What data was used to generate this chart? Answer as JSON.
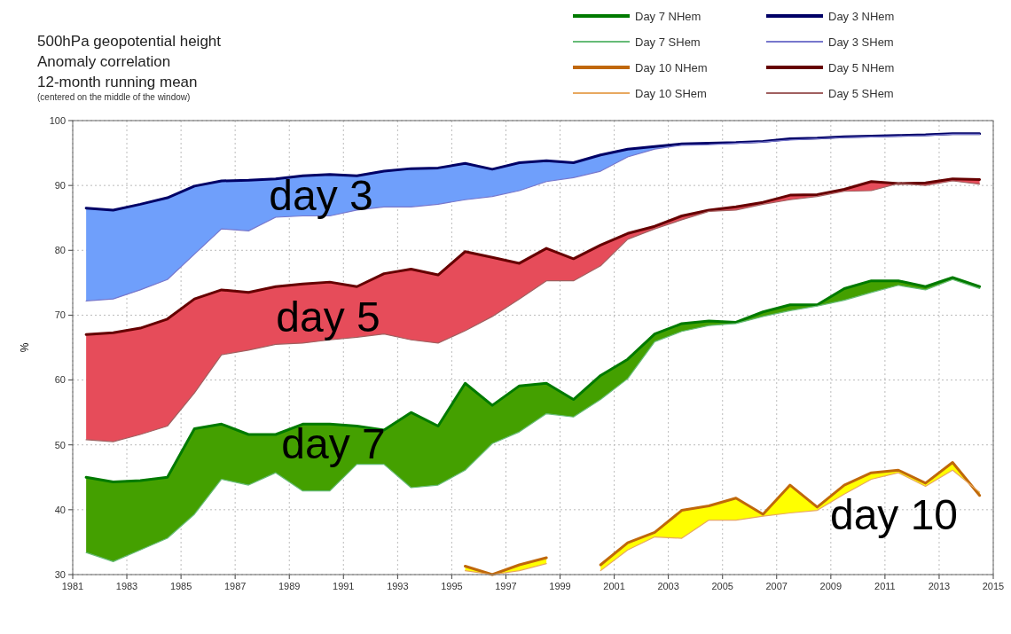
{
  "chart_data": {
    "type": "line",
    "title": "500hPa geopotential height\nAnomaly correlation\n12-month running mean",
    "subtitle": "(centered on the middle of the window)",
    "ylabel": "%",
    "x": [
      "1981-07",
      "1982-07",
      "1983-07",
      "1984-07",
      "1985-07",
      "1986-07",
      "1987-07",
      "1988-07",
      "1989-07",
      "1990-07",
      "1991-07",
      "1992-07",
      "1993-07",
      "1994-07",
      "1995-07",
      "1996-07",
      "1997-07",
      "1998-07",
      "1999-07",
      "2000-07",
      "2001-07",
      "2002-07",
      "2003-07",
      "2004-07",
      "2005-07",
      "2006-07",
      "2007-07",
      "2008-07",
      "2009-07",
      "2010-07",
      "2011-07",
      "2012-07",
      "2013-07",
      "2014-07"
    ],
    "xlim": [
      "1981",
      "2015"
    ],
    "xticks": [
      "1981",
      "1983",
      "1985",
      "1987",
      "1989",
      "1991",
      "1993",
      "1995",
      "1997",
      "1999",
      "2001",
      "2003",
      "2005",
      "2007",
      "2009",
      "2011",
      "2013",
      "2015"
    ],
    "ylim": [
      30,
      100
    ],
    "yticks": [
      30,
      40,
      50,
      60,
      70,
      80,
      90,
      100
    ],
    "grid": true,
    "legend": "top right",
    "series": [
      {
        "type": "area",
        "color": "#44a000",
        "values": [
          null,
          null,
          null,
          null,
          null,
          null,
          null,
          null,
          null,
          null,
          null,
          null,
          null,
          null,
          null,
          null,
          null,
          null,
          null,
          null,
          null,
          null,
          null,
          null,
          null,
          null,
          null,
          null,
          null,
          null,
          null,
          null,
          null,
          null
        ],
        "upper": [
          45.0,
          44.3,
          44.5,
          45.0,
          52.5,
          53.2,
          51.6,
          51.6,
          53.2,
          53.2,
          52.9,
          52.3,
          55.0,
          52.9,
          59.5,
          56.1,
          59.1,
          59.5,
          57.0,
          60.7,
          63.2,
          67.1,
          68.7,
          69.1,
          68.9,
          70.5,
          71.6,
          71.6,
          74.1,
          75.3,
          75.3,
          74.4,
          75.8,
          74.4
        ],
        "lower": [
          33.4,
          32.0,
          33.8,
          35.6,
          39.3,
          44.7,
          43.8,
          45.7,
          42.9,
          42.9,
          47.0,
          47.0,
          43.4,
          43.8,
          46.1,
          50.2,
          52.0,
          54.8,
          54.3,
          57.0,
          60.2,
          65.9,
          67.5,
          68.4,
          68.7,
          69.8,
          70.7,
          71.4,
          72.3,
          73.5,
          74.6,
          73.9,
          75.5,
          74.1
        ]
      },
      {
        "name": "Day 7 NHem",
        "color": "#007a00",
        "values": [
          45.0,
          44.3,
          44.5,
          45.0,
          52.5,
          53.2,
          51.6,
          51.6,
          53.2,
          53.2,
          52.9,
          52.3,
          55.0,
          52.9,
          59.5,
          56.1,
          59.1,
          59.5,
          57.0,
          60.7,
          63.2,
          67.1,
          68.7,
          69.1,
          68.9,
          70.5,
          71.6,
          71.6,
          74.1,
          75.3,
          75.3,
          74.4,
          75.8,
          74.4
        ]
      },
      {
        "name": "Day 7 SHem",
        "color": "#66bb77",
        "values": [
          33.4,
          32.0,
          33.8,
          35.6,
          39.3,
          44.7,
          43.8,
          45.7,
          42.9,
          42.9,
          47.0,
          47.0,
          43.4,
          43.8,
          46.1,
          50.2,
          52.0,
          54.8,
          54.3,
          57.0,
          60.2,
          65.9,
          67.5,
          68.4,
          68.7,
          69.8,
          70.7,
          71.4,
          72.3,
          73.5,
          74.6,
          73.9,
          75.5,
          74.1
        ]
      },
      {
        "type": "area",
        "color": "#ffff00",
        "values": [
          null,
          null,
          null,
          null,
          null,
          null,
          null,
          null,
          null,
          null,
          null,
          null,
          null,
          null,
          null,
          null,
          null,
          null,
          null,
          null,
          null,
          null,
          null,
          null,
          null,
          null,
          null,
          null,
          null,
          null,
          null,
          null,
          null,
          null
        ],
        "upper": [
          null,
          null,
          null,
          null,
          null,
          null,
          null,
          null,
          null,
          null,
          null,
          null,
          null,
          null,
          31.3,
          30.0,
          31.5,
          32.6,
          null,
          31.5,
          34.9,
          36.5,
          39.9,
          40.6,
          41.8,
          39.3,
          43.8,
          40.4,
          43.8,
          45.7,
          46.1,
          44.1,
          47.3,
          42.2
        ],
        "lower": [
          null,
          null,
          null,
          null,
          null,
          null,
          null,
          null,
          null,
          null,
          null,
          null,
          null,
          null,
          30.6,
          30.0,
          30.6,
          31.7,
          null,
          30.6,
          33.8,
          35.8,
          35.6,
          38.4,
          38.4,
          39.0,
          39.5,
          39.9,
          42.4,
          44.7,
          45.7,
          43.6,
          46.1,
          42.7
        ]
      },
      {
        "name": "Day 10 NHem",
        "color": "#c0680a",
        "values": [
          null,
          null,
          null,
          null,
          null,
          null,
          null,
          null,
          null,
          null,
          null,
          null,
          null,
          null,
          31.3,
          30.0,
          31.5,
          32.6,
          null,
          31.5,
          34.9,
          36.5,
          39.9,
          40.6,
          41.8,
          39.3,
          43.8,
          40.4,
          43.8,
          45.7,
          46.1,
          44.1,
          47.3,
          42.2
        ]
      },
      {
        "name": "Day 10 SHem",
        "color": "#e8a860",
        "values": [
          null,
          null,
          null,
          null,
          null,
          null,
          null,
          null,
          null,
          null,
          null,
          null,
          null,
          null,
          30.6,
          30.0,
          30.6,
          31.7,
          null,
          30.6,
          33.8,
          35.8,
          35.6,
          38.4,
          38.4,
          39.0,
          39.5,
          39.9,
          42.4,
          44.7,
          45.7,
          43.6,
          46.1,
          42.7
        ]
      },
      {
        "type": "area",
        "color": "#6f9ffb",
        "values": [
          null,
          null,
          null,
          null,
          null,
          null,
          null,
          null,
          null,
          null,
          null,
          null,
          null,
          null,
          null,
          null,
          null,
          null,
          null,
          null,
          null,
          null,
          null,
          null,
          null,
          null,
          null,
          null,
          null,
          null,
          null,
          null,
          null,
          null
        ],
        "upper": [
          86.5,
          86.2,
          87.1,
          88.1,
          89.9,
          90.7,
          90.8,
          91.0,
          91.5,
          91.7,
          91.5,
          92.2,
          92.6,
          92.7,
          93.4,
          92.5,
          93.5,
          93.8,
          93.5,
          94.7,
          95.6,
          96.0,
          96.4,
          96.5,
          96.6,
          96.8,
          97.2,
          97.3,
          97.5,
          97.6,
          97.7,
          97.8,
          98.0,
          98.0
        ],
        "lower": [
          72.2,
          72.5,
          73.9,
          75.5,
          79.4,
          83.3,
          83.0,
          85.1,
          85.3,
          85.3,
          86.2,
          86.7,
          86.7,
          87.1,
          87.8,
          88.3,
          89.2,
          90.6,
          91.2,
          92.2,
          94.4,
          95.6,
          96.2,
          96.3,
          96.5,
          96.7,
          97.0,
          97.2,
          97.4,
          97.5,
          97.6,
          97.7,
          97.9,
          97.9
        ]
      },
      {
        "name": "Day 3 NHem",
        "color": "#000066",
        "values": [
          86.5,
          86.2,
          87.1,
          88.1,
          89.9,
          90.7,
          90.8,
          91.0,
          91.5,
          91.7,
          91.5,
          92.2,
          92.6,
          92.7,
          93.4,
          92.5,
          93.5,
          93.8,
          93.5,
          94.7,
          95.6,
          96.0,
          96.4,
          96.5,
          96.6,
          96.8,
          97.2,
          97.3,
          97.5,
          97.6,
          97.7,
          97.8,
          98.0,
          98.0
        ]
      },
      {
        "name": "Day 3 SHem",
        "color": "#7777cc",
        "values": [
          72.2,
          72.5,
          73.9,
          75.5,
          79.4,
          83.3,
          83.0,
          85.1,
          85.3,
          85.3,
          86.2,
          86.7,
          86.7,
          87.1,
          87.8,
          88.3,
          89.2,
          90.6,
          91.2,
          92.2,
          94.4,
          95.6,
          96.2,
          96.3,
          96.5,
          96.7,
          97.0,
          97.2,
          97.4,
          97.5,
          97.6,
          97.7,
          97.9,
          97.9
        ]
      },
      {
        "type": "area",
        "color": "#e64c5a",
        "values": [
          null,
          null,
          null,
          null,
          null,
          null,
          null,
          null,
          null,
          null,
          null,
          null,
          null,
          null,
          null,
          null,
          null,
          null,
          null,
          null,
          null,
          null,
          null,
          null,
          null,
          null,
          null,
          null,
          null,
          null,
          null,
          null,
          null,
          null
        ],
        "upper": [
          67.0,
          67.3,
          68.0,
          69.4,
          72.5,
          73.9,
          73.5,
          74.4,
          74.8,
          75.1,
          74.4,
          76.4,
          77.1,
          76.2,
          79.8,
          78.9,
          78.0,
          80.3,
          78.7,
          80.8,
          82.6,
          83.7,
          85.3,
          86.2,
          86.7,
          87.4,
          88.5,
          88.6,
          89.4,
          90.6,
          90.3,
          90.4,
          91.0,
          90.9
        ],
        "lower": [
          50.8,
          50.5,
          51.6,
          52.9,
          58.0,
          63.9,
          64.6,
          65.5,
          65.7,
          66.2,
          66.6,
          67.1,
          66.2,
          65.7,
          67.6,
          69.8,
          72.5,
          75.3,
          75.3,
          77.6,
          81.7,
          83.3,
          84.7,
          86.0,
          86.2,
          87.1,
          87.8,
          88.3,
          89.1,
          89.2,
          90.3,
          90.0,
          90.7,
          90.2
        ]
      },
      {
        "name": "Day 5 NHem",
        "color": "#660000",
        "values": [
          67.0,
          67.3,
          68.0,
          69.4,
          72.5,
          73.9,
          73.5,
          74.4,
          74.8,
          75.1,
          74.4,
          76.4,
          77.1,
          76.2,
          79.8,
          78.9,
          78.0,
          80.3,
          78.7,
          80.8,
          82.6,
          83.7,
          85.3,
          86.2,
          86.7,
          87.4,
          88.5,
          88.6,
          89.4,
          90.6,
          90.3,
          90.4,
          91.0,
          90.9
        ]
      },
      {
        "name": "Day 5 SHem",
        "color": "#a06060",
        "values": [
          50.8,
          50.5,
          51.6,
          52.9,
          58.0,
          63.9,
          64.6,
          65.5,
          65.7,
          66.2,
          66.6,
          67.1,
          66.2,
          65.7,
          67.6,
          69.8,
          72.5,
          75.3,
          75.3,
          77.6,
          81.7,
          83.3,
          84.7,
          86.0,
          86.2,
          87.1,
          87.8,
          88.3,
          89.1,
          89.2,
          90.3,
          90.0,
          90.7,
          90.2
        ]
      }
    ],
    "annotations": [
      "day 7",
      "day 10",
      "day 3",
      "day 5"
    ]
  }
}
